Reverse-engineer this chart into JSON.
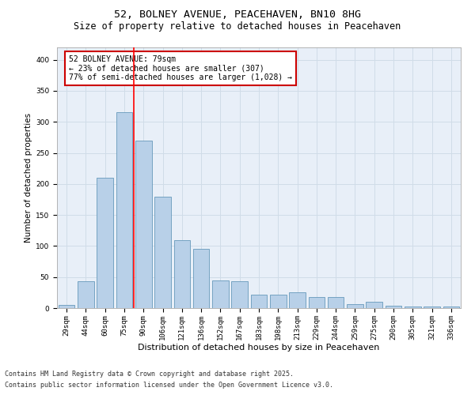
{
  "title1": "52, BOLNEY AVENUE, PEACEHAVEN, BN10 8HG",
  "title2": "Size of property relative to detached houses in Peacehaven",
  "xlabel": "Distribution of detached houses by size in Peacehaven",
  "ylabel": "Number of detached properties",
  "categories": [
    "29sqm",
    "44sqm",
    "60sqm",
    "75sqm",
    "90sqm",
    "106sqm",
    "121sqm",
    "136sqm",
    "152sqm",
    "167sqm",
    "183sqm",
    "198sqm",
    "213sqm",
    "229sqm",
    "244sqm",
    "259sqm",
    "275sqm",
    "290sqm",
    "305sqm",
    "321sqm",
    "336sqm"
  ],
  "values": [
    5,
    43,
    210,
    315,
    270,
    180,
    110,
    95,
    45,
    43,
    22,
    22,
    25,
    18,
    18,
    7,
    10,
    4,
    2,
    2,
    2
  ],
  "bar_color": "#b8d0e8",
  "bar_edge_color": "#6699bb",
  "annotation_text": "52 BOLNEY AVENUE: 79sqm\n← 23% of detached houses are smaller (307)\n77% of semi-detached houses are larger (1,028) →",
  "annotation_box_color": "#ffffff",
  "annotation_box_edge_color": "#cc0000",
  "footnote1": "Contains HM Land Registry data © Crown copyright and database right 2025.",
  "footnote2": "Contains public sector information licensed under the Open Government Licence v3.0.",
  "ylim": [
    0,
    420
  ],
  "yticks": [
    0,
    50,
    100,
    150,
    200,
    250,
    300,
    350,
    400
  ],
  "grid_color": "#d0dce8",
  "bg_color": "#e8eff8",
  "title1_fontsize": 9.5,
  "title2_fontsize": 8.5,
  "xlabel_fontsize": 8,
  "ylabel_fontsize": 7.5,
  "tick_fontsize": 6.5,
  "annot_fontsize": 7,
  "footnote_fontsize": 6
}
